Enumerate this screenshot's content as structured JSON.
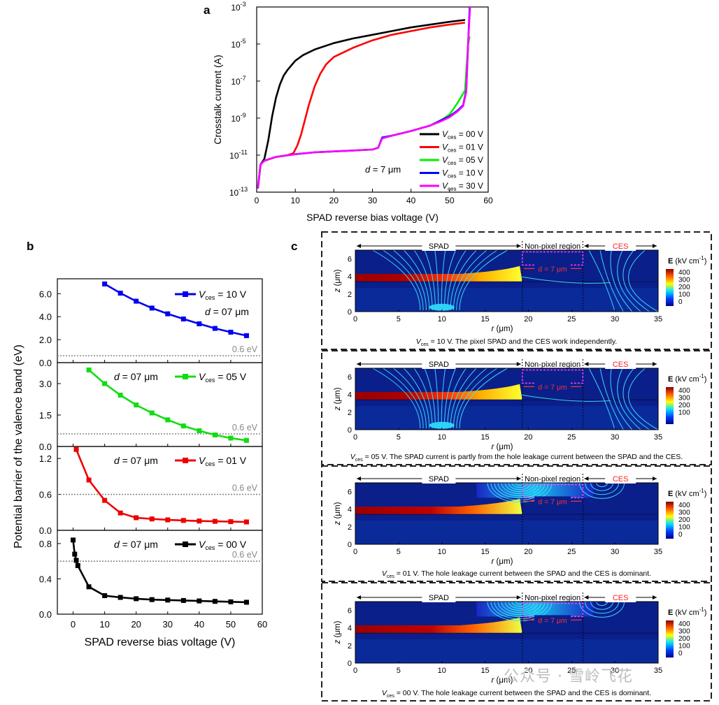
{
  "panel_labels": {
    "a": "a",
    "b": "b",
    "c": "c"
  },
  "watermark": "公众号 · 雪岭飞花",
  "chart_data": [
    {
      "id": "a",
      "type": "line",
      "yscale": "log",
      "xlabel": "SPAD reverse bias voltage (V)",
      "ylabel": "Crosstalk current (A)",
      "xlim": [
        0,
        60
      ],
      "ylim_exp": [
        -13,
        -3
      ],
      "xticks": [
        0,
        10,
        20,
        30,
        40,
        50,
        60
      ],
      "ytick_exps": [
        -13,
        -11,
        -9,
        -7,
        -5,
        -3
      ],
      "ytick_base": "10",
      "annotation": {
        "pre": "d",
        "post": " = 7 μm"
      },
      "legend_prefix": "V",
      "legend_sub": "ces",
      "series": [
        {
          "name": " = 00 V",
          "color": "#000000",
          "x": [
            0.3,
            1,
            2,
            3,
            4,
            5,
            6,
            7,
            8,
            10,
            12,
            15,
            20,
            25,
            30,
            35,
            40,
            45,
            50,
            54
          ],
          "y": [
            -12.8,
            -11.5,
            -11.2,
            -10.2,
            -8.9,
            -7.9,
            -7.2,
            -6.7,
            -6.4,
            -5.9,
            -5.6,
            -5.3,
            -4.95,
            -4.7,
            -4.5,
            -4.3,
            -4.1,
            -3.95,
            -3.8,
            -3.7
          ]
        },
        {
          "name": " = 01 V",
          "color": "#ff0000",
          "x": [
            0.3,
            1,
            2,
            5,
            8,
            9.5,
            10.5,
            11.5,
            12.5,
            13.5,
            15,
            16.5,
            18,
            20,
            25,
            30,
            35,
            40,
            45,
            50,
            54
          ],
          "y": [
            -12.8,
            -11.5,
            -11.3,
            -11.1,
            -11.0,
            -10.9,
            -10.5,
            -9.9,
            -9.1,
            -8.3,
            -7.3,
            -6.6,
            -6.1,
            -5.7,
            -5.2,
            -4.8,
            -4.5,
            -4.3,
            -4.1,
            -3.95,
            -3.85
          ]
        },
        {
          "name": " = 05 V",
          "color": "#00ee00",
          "x": [
            0.3,
            1,
            2,
            5,
            10,
            15,
            20,
            25,
            30,
            31.5,
            32.5,
            35,
            40,
            45,
            48,
            50,
            52,
            54,
            54.8,
            55.2
          ],
          "y": [
            -12.8,
            -11.5,
            -11.3,
            -11.1,
            -10.95,
            -10.85,
            -10.8,
            -10.75,
            -10.7,
            -10.6,
            -10.1,
            -9.95,
            -9.7,
            -9.4,
            -9.1,
            -8.8,
            -8.2,
            -7.5,
            -5.0,
            -4.6
          ]
        },
        {
          "name": " = 10 V",
          "color": "#0000ff",
          "x": [
            0.3,
            1,
            2,
            5,
            10,
            15,
            20,
            25,
            30,
            31.5,
            32.5,
            35,
            40,
            45,
            48,
            50,
            52,
            53.5,
            54.3,
            54.8,
            55.2
          ],
          "y": [
            -12.8,
            -11.5,
            -11.3,
            -11.1,
            -10.95,
            -10.85,
            -10.8,
            -10.75,
            -10.7,
            -10.6,
            -10.05,
            -9.95,
            -9.7,
            -9.4,
            -9.1,
            -8.9,
            -8.6,
            -8.3,
            -7.5,
            -5.0,
            -3.0
          ]
        },
        {
          "name": " = 30 V",
          "color": "#ff00ff",
          "x": [
            0.3,
            1,
            2,
            5,
            10,
            15,
            20,
            25,
            30,
            31.5,
            32.5,
            35,
            40,
            45,
            48,
            50,
            52,
            53.5,
            54.3,
            54.8,
            55.3
          ],
          "y": [
            -12.8,
            -11.5,
            -11.3,
            -11.1,
            -10.95,
            -10.85,
            -10.8,
            -10.75,
            -10.7,
            -10.6,
            -10.1,
            -9.95,
            -9.7,
            -9.4,
            -9.15,
            -8.95,
            -8.65,
            -8.35,
            -7.6,
            -5.0,
            -3.0
          ]
        }
      ]
    },
    {
      "id": "b",
      "type": "line",
      "xlabel": "SPAD reverse bias voltage (V)",
      "ylabel": "Potential barrier of the valence band (eV)",
      "xlim": [
        -5,
        60
      ],
      "xticks": [
        0,
        10,
        20,
        30,
        40,
        50,
        60
      ],
      "ref_label": "0.6 eV",
      "ref_value": 0.6,
      "d_label": {
        "pre": "d",
        "post": " = 07 μm"
      },
      "legend_prefix": "V",
      "legend_sub": "ces",
      "subplots": [
        {
          "legend": " = 10 V",
          "color": "#0000ee",
          "ylim": [
            0,
            7.3
          ],
          "yticks": [
            "0.0",
            "2.0",
            "4.0",
            "6.0"
          ],
          "ytick_vals": [
            0,
            2,
            4,
            6
          ],
          "x": [
            10,
            15,
            20,
            25,
            30,
            35,
            40,
            45,
            50,
            55
          ],
          "y": [
            6.85,
            6.05,
            5.35,
            4.75,
            4.25,
            3.8,
            3.38,
            2.98,
            2.65,
            2.35
          ],
          "layout": "legend-top-d-below"
        },
        {
          "legend": " = 05 V",
          "color": "#11dd11",
          "ylim": [
            0,
            4.0
          ],
          "yticks": [
            "0.0",
            "1.5",
            "3.0"
          ],
          "ytick_vals": [
            0,
            1.5,
            3
          ],
          "x": [
            5,
            10,
            15,
            20,
            25,
            30,
            35,
            40,
            45,
            50,
            55
          ],
          "y": [
            3.65,
            3.0,
            2.45,
            1.98,
            1.6,
            1.27,
            0.98,
            0.75,
            0.55,
            0.4,
            0.29
          ],
          "layout": "d-left-legend-right"
        },
        {
          "legend": " = 01 V",
          "color": "#ee0000",
          "ylim": [
            0,
            1.4
          ],
          "yticks": [
            "0.0",
            "0.6",
            "1.2"
          ],
          "ytick_vals": [
            0,
            0.6,
            1.2
          ],
          "x": [
            1,
            5,
            10,
            15,
            20,
            25,
            30,
            35,
            40,
            45,
            50,
            55
          ],
          "y": [
            1.35,
            0.84,
            0.5,
            0.29,
            0.21,
            0.19,
            0.175,
            0.165,
            0.155,
            0.15,
            0.145,
            0.14
          ],
          "layout": "d-left-legend-right"
        },
        {
          "legend": " = 00 V",
          "color": "#000000",
          "ylim": [
            0,
            0.95
          ],
          "yticks": [
            "0.0",
            "0.4",
            "0.8"
          ],
          "ytick_vals": [
            0,
            0.4,
            0.8
          ],
          "x": [
            0,
            0.5,
            1,
            1.5,
            5,
            10,
            15,
            20,
            25,
            30,
            35,
            40,
            45,
            50,
            55
          ],
          "y": [
            0.84,
            0.68,
            0.61,
            0.55,
            0.31,
            0.21,
            0.19,
            0.175,
            0.165,
            0.16,
            0.155,
            0.15,
            0.145,
            0.14,
            0.135
          ],
          "layout": "d-left-legend-right"
        }
      ]
    },
    {
      "id": "c",
      "type": "heatmap",
      "region_labels": [
        "SPAD",
        "Non-pixel region",
        "CES"
      ],
      "d_label": "d = 7 μm",
      "xlabel": "r (μm)",
      "ylabel": "z (μm)",
      "xlim": [
        0,
        35
      ],
      "ylim": [
        0,
        7
      ],
      "xticks": [
        0,
        5,
        10,
        15,
        20,
        25,
        30,
        35
      ],
      "yticks": [
        0,
        2,
        4,
        6
      ],
      "colorbar": {
        "title": "E (kV cm",
        "title_sup": "-1",
        "title_end": ")",
        "ticks": [
          400,
          300,
          200,
          100,
          0
        ]
      },
      "subpanels": [
        {
          "vsub": "ces",
          "caption": " = 10 V. The pixel SPAD and the CES work independently.",
          "colorbar_ticks": [
            "400",
            "300",
            "200",
            "100",
            "0"
          ]
        },
        {
          "vsub": "ces",
          "caption": " = 05 V. The SPAD current is partly from the hole leakage current between the SPAD and the CES.",
          "colorbar_ticks": [
            "400",
            "300",
            "200",
            "100"
          ]
        },
        {
          "vsub": "ces",
          "caption": " = 01 V. The hole leakage current between the SPAD and the CES is dominant.",
          "colorbar_ticks": [
            "400",
            "300",
            "200",
            "100",
            "0"
          ]
        },
        {
          "vsub": "ces",
          "caption": " = 00 V. The hole leakage current between the SPAD and the CES is dominant.",
          "colorbar_ticks": [
            "400",
            "300",
            "200",
            "100",
            "0"
          ]
        }
      ]
    }
  ]
}
